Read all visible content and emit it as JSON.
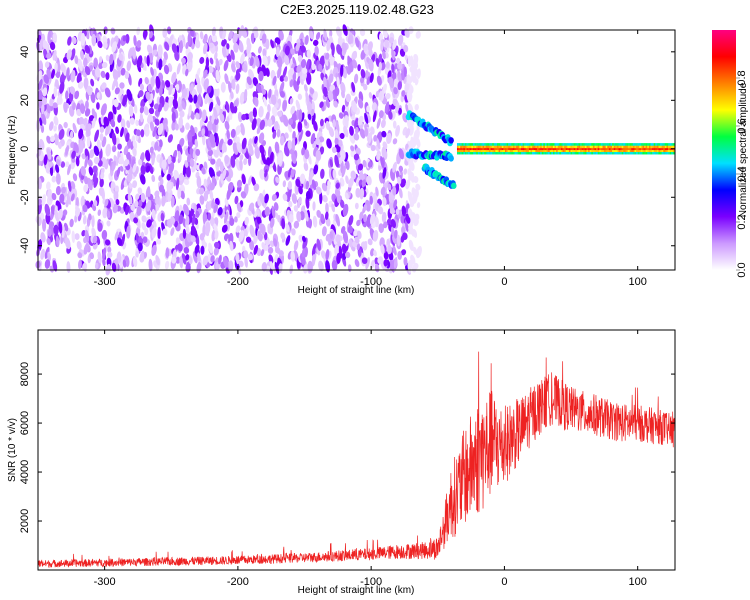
{
  "chart_data": [
    {
      "type": "heatmap",
      "title": "C2E3.2025.119.02.48.G23",
      "xlabel": "Height of straight line (km)",
      "ylabel": "Frequency (Hz)",
      "xlim": [
        -350,
        128
      ],
      "ylim": [
        -50,
        49
      ],
      "x_ticks": [
        "-300",
        "-200",
        "-100",
        "0",
        "100"
      ],
      "x_tick_values": [
        -300,
        -200,
        -100,
        0,
        100
      ],
      "y_ticks": [
        "-40",
        "-20",
        "0",
        "20",
        "40"
      ],
      "y_tick_values": [
        -40,
        -20,
        0,
        20,
        40
      ],
      "colorbar": {
        "label": "Normalized spectral amplitude",
        "range": [
          0,
          1
        ],
        "ticks": [
          "0.0",
          "0.2",
          "0.4",
          "0.6",
          "0.8"
        ],
        "tick_values": [
          0.0,
          0.2,
          0.4,
          0.6,
          0.8
        ],
        "colors": [
          "#ffffff",
          "#cc99ff",
          "#7a00ff",
          "#0000ff",
          "#00e0ff",
          "#00ff40",
          "#ffff00",
          "#ff8000",
          "#ff0000",
          "#ff0080"
        ]
      },
      "features": {
        "noise_region_km": [
          -350,
          -72
        ],
        "noise_amplitude": 0.15,
        "signal_onset_km": -72,
        "signal_frequency_hz": 0,
        "carrier_region_km": [
          -35,
          128
        ],
        "carrier_amplitude": 0.85,
        "transition_lobes": [
          {
            "x_start": -72,
            "x_end": -40,
            "f_start": 14,
            "f_end": 3
          },
          {
            "x_start": -72,
            "x_end": -40,
            "f_start": -2,
            "f_end": -3
          },
          {
            "x_start": -60,
            "x_end": -38,
            "f_start": -8,
            "f_end": -15
          }
        ]
      },
      "grid": false
    },
    {
      "type": "line",
      "title": "",
      "xlabel": "Height of straight line (km)",
      "ylabel": "SNR (10 * v/v)",
      "xlim": [
        -350,
        128
      ],
      "ylim": [
        0,
        9800
      ],
      "x_ticks": [
        "-300",
        "-200",
        "-100",
        "0",
        "100"
      ],
      "x_tick_values": [
        -300,
        -200,
        -100,
        0,
        100
      ],
      "y_ticks": [
        "2000",
        "4000",
        "6000",
        "8000"
      ],
      "y_tick_values": [
        2000,
        4000,
        6000,
        8000
      ],
      "series_color": "#ee2222",
      "series": [
        {
          "name": "",
          "x": [
            -350,
            -300,
            -250,
            -200,
            -150,
            -100,
            -80,
            -60,
            -50,
            -45,
            -40,
            -35,
            -30,
            -25,
            -20,
            -15,
            -10,
            -5,
            0,
            5,
            10,
            15,
            20,
            25,
            30,
            35,
            40,
            45,
            50,
            60,
            70,
            80,
            90,
            100,
            110,
            120,
            128
          ],
          "y": [
            250,
            300,
            350,
            400,
            500,
            650,
            750,
            800,
            900,
            1800,
            2800,
            3200,
            3800,
            4200,
            4600,
            4800,
            5200,
            5100,
            5000,
            5400,
            5600,
            5900,
            6300,
            6600,
            6800,
            7000,
            6900,
            6700,
            6600,
            6400,
            6300,
            6100,
            6000,
            6000,
            5900,
            5800,
            5600
          ],
          "noise_amplitude": [
            150,
            160,
            170,
            180,
            200,
            250,
            300,
            350,
            500,
            900,
            1500,
            1800,
            2000,
            2200,
            2400,
            2400,
            2200,
            2000,
            1600,
            1500,
            1400,
            1300,
            1200,
            1200,
            1100,
            1100,
            1000,
            1000,
            900,
            900,
            850,
            800,
            800,
            750,
            750,
            700,
            700
          ]
        }
      ],
      "grid": false
    }
  ]
}
